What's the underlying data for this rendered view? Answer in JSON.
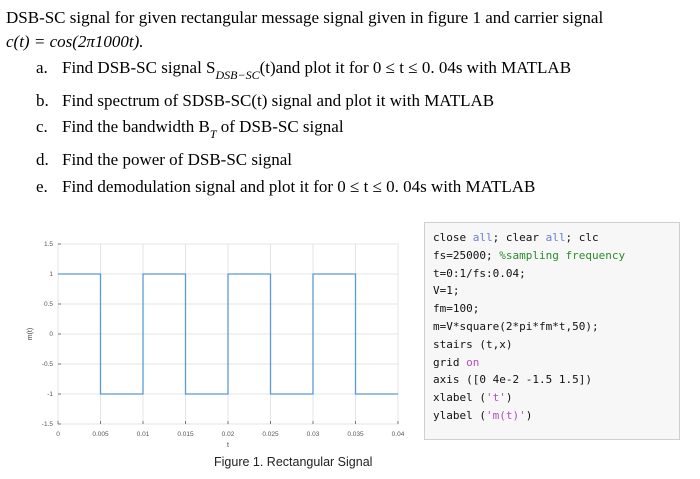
{
  "intro": {
    "line1": "DSB-SC signal for given rectangular message signal given in figure 1 and carrier signal",
    "line2": "c(t)  =  cos(2π1000t)."
  },
  "tasks": [
    {
      "label": "a.",
      "pre": "Find DSB-SC signal S",
      "sub": "DSB−SC",
      "post": "(t)and plot it for 0 ≤ t ≤ 0. 04s with MATLAB"
    },
    {
      "label": "b.",
      "pre": "Find spectrum of SDSB-SC(t) signal and plot it with MATLAB",
      "sub": "",
      "post": ""
    },
    {
      "label": "c.",
      "pre": "Find the bandwidth B",
      "sub": "T",
      "post": " of DSB-SC signal"
    },
    {
      "label": "d.",
      "pre": "Find the power of DSB-SC signal",
      "sub": "",
      "post": ""
    },
    {
      "label": "e.",
      "pre": "Find demodulation signal and plot it for 0 ≤ t ≤ 0. 04s with MATLAB",
      "sub": "",
      "post": ""
    }
  ],
  "figure_caption": "Figure 1. Rectangular Signal",
  "chart_data": {
    "type": "line",
    "step": true,
    "xlabel": "t",
    "ylabel": "m(t)",
    "xlim": [
      0,
      0.04
    ],
    "ylim": [
      -1.5,
      1.5
    ],
    "grid": true,
    "color": "#5b9bd5",
    "xticks": [
      "0",
      "0.005",
      "0.01",
      "0.015",
      "0.02",
      "0.025",
      "0.03",
      "0.035",
      "0.04"
    ],
    "yticks": [
      "-1.5",
      "-1",
      "-0.5",
      "0",
      "0.5",
      "1",
      "1.5"
    ],
    "x": [
      0,
      0.005,
      0.01,
      0.015,
      0.02,
      0.025,
      0.03,
      0.035,
      0.04
    ],
    "y": [
      1,
      -1,
      1,
      -1,
      1,
      -1,
      1,
      -1,
      -1
    ]
  },
  "code": [
    [
      {
        "t": "close "
      },
      {
        "t": "all",
        "c": "kw"
      },
      {
        "t": "; clear "
      },
      {
        "t": "all",
        "c": "kw"
      },
      {
        "t": "; clc"
      }
    ],
    [
      {
        "t": "fs=25000; "
      },
      {
        "t": "%sampling frequency",
        "c": "cm"
      }
    ],
    [
      {
        "t": "t=0:1/fs:0.04;"
      }
    ],
    [
      {
        "t": "V=1;"
      }
    ],
    [
      {
        "t": "fm=100;"
      }
    ],
    [
      {
        "t": "m=V*square(2*pi*fm*t,50);"
      }
    ],
    [
      {
        "t": "stairs (t,x)"
      }
    ],
    [
      {
        "t": "grid "
      },
      {
        "t": "on",
        "c": "st"
      }
    ],
    [
      {
        "t": "axis ([0 4e-2 -1.5 1.5])"
      }
    ],
    [
      {
        "t": "xlabel ("
      },
      {
        "t": "'t'",
        "c": "st"
      },
      {
        "t": ")"
      }
    ],
    [
      {
        "t": "ylabel ("
      },
      {
        "t": "'m(t)'",
        "c": "st"
      },
      {
        "t": ")"
      }
    ]
  ]
}
